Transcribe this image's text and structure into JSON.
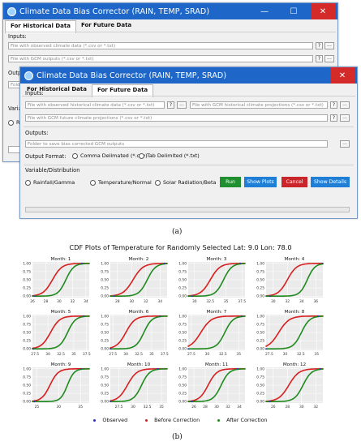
{
  "app": {
    "title": "Climate Data Bias Corrector (RAIN, TEMP, SRAD)",
    "window_controls": {
      "minimize": "—",
      "maximize": "☐",
      "close": "✕"
    },
    "tabs": [
      "For Historical Data",
      "For Future Data"
    ]
  },
  "back_window": {
    "active_tab": "For Historical Data",
    "inputs_label": "Inputs:",
    "observed_placeholder": "File with observed climate data (*.csv or *.txt)",
    "gcm_placeholder": "File with GCM outputs (*.csv or *.txt)",
    "outputs_label": "Outpu",
    "output_folder_partial": "Fold",
    "var_label_partial": "Variab",
    "radio_partial": "R"
  },
  "front_window": {
    "active_tab": "For Future Data",
    "inputs_label": "Inputs:",
    "observed_hist_placeholder": "File with observed historical climate data (*.csv or *.txt)",
    "gcm_hist_placeholder": "File with GCM historical climate projections (*.csv or *.txt)",
    "gcm_future_placeholder": "File with GCM future climate projections (*.csv or *.txt)",
    "outputs_label": "Outputs:",
    "output_folder_placeholder": "Folder to save bias corrected GCM outputs",
    "output_format_label": "Output Format:",
    "format_options": [
      "Comma Delimated (*.csv)",
      "Tab Delimited (*.txt)"
    ],
    "variable_label": "Variable/Distribution",
    "variable_options": [
      "Rainfall/Gamma",
      "Temperature/Normal",
      "Solar Radiation/Beta"
    ],
    "help_glyph": "?",
    "browse_glyph": "...",
    "buttons": {
      "run": "Run",
      "show_plots": "Show Plots",
      "cancel": "Cancel",
      "show_details": "Show Details"
    },
    "button_colors": {
      "run": "#1f8f2f",
      "show_plots": "#1f7fd6",
      "cancel": "#c9252b",
      "show_details": "#1f7fd6"
    }
  },
  "caption_a": "(a)",
  "caption_b": "(b)",
  "chart_data": {
    "type": "line",
    "title": "CDF Plots of Temperature for Randomly Selected Lat: 9.0 Lon: 78.0",
    "panel_titles": [
      "Month: 1",
      "Month: 2",
      "Month: 3",
      "Month: 4",
      "Month: 5",
      "Month: 6",
      "Month: 7",
      "Month: 8",
      "Month: 9",
      "Month: 10",
      "Month: 11",
      "Month: 12"
    ],
    "y_ticks": [
      "0.00",
      "0.25",
      "0.50",
      "0.75",
      "1.00"
    ],
    "ylim": [
      0,
      1
    ],
    "colors": {
      "observed": "#2a2ad0",
      "before": "#d81e1e",
      "after": "#1e8a1e"
    },
    "legend": [
      "Observed",
      "Before Correction",
      "After Correction"
    ],
    "panels": [
      {
        "x_ticks": [
          26,
          28,
          30,
          32,
          34
        ],
        "xlim": [
          26,
          34.5
        ],
        "before": {
          "mu": 29.0,
          "sd": 1.2
        },
        "after": {
          "mu": 31.0,
          "sd": 1.0
        }
      },
      {
        "x_ticks": [
          28,
          30,
          32,
          34
        ],
        "xlim": [
          27,
          35
        ],
        "before": {
          "mu": 30.2,
          "sd": 1.2
        },
        "after": {
          "mu": 32.2,
          "sd": 1.0
        }
      },
      {
        "x_ticks": [
          30.0,
          32.5,
          35.0,
          37.5
        ],
        "xlim": [
          29,
          38
        ],
        "before": {
          "mu": 32.5,
          "sd": 1.3
        },
        "after": {
          "mu": 34.6,
          "sd": 1.1
        }
      },
      {
        "x_ticks": [
          30,
          32,
          34,
          36
        ],
        "xlim": [
          29,
          37
        ],
        "before": {
          "mu": 32.0,
          "sd": 1.1
        },
        "after": {
          "mu": 34.8,
          "sd": 0.9
        }
      },
      {
        "x_ticks": [
          27.5,
          30.0,
          32.5,
          35.0,
          37.5
        ],
        "xlim": [
          27,
          38
        ],
        "before": {
          "mu": 30.5,
          "sd": 1.5
        },
        "after": {
          "mu": 33.8,
          "sd": 1.3
        }
      },
      {
        "x_ticks": [
          27.5,
          30.0,
          32.5,
          35.0,
          37.5
        ],
        "xlim": [
          27,
          38
        ],
        "before": {
          "mu": 30.0,
          "sd": 1.5
        },
        "after": {
          "mu": 33.5,
          "sd": 1.3
        }
      },
      {
        "x_ticks": [
          27.5,
          30.0,
          32.5,
          35.0
        ],
        "xlim": [
          27,
          36
        ],
        "before": {
          "mu": 29.0,
          "sd": 1.4
        },
        "after": {
          "mu": 32.8,
          "sd": 1.1
        }
      },
      {
        "x_ticks": [
          27.5,
          30.0,
          32.5,
          35.0
        ],
        "xlim": [
          27,
          36
        ],
        "before": {
          "mu": 29.0,
          "sd": 1.4
        },
        "after": {
          "mu": 32.6,
          "sd": 1.1
        }
      },
      {
        "x_ticks": [
          25,
          30,
          35
        ],
        "xlim": [
          24,
          37
        ],
        "before": {
          "mu": 28.0,
          "sd": 1.6
        },
        "after": {
          "mu": 32.0,
          "sd": 1.3
        }
      },
      {
        "x_ticks": [
          27.5,
          30.0,
          32.5,
          35.0
        ],
        "xlim": [
          26,
          36
        ],
        "before": {
          "mu": 29.0,
          "sd": 1.4
        },
        "after": {
          "mu": 31.5,
          "sd": 1.2
        }
      },
      {
        "x_ticks": [
          26,
          28,
          30,
          32,
          34
        ],
        "xlim": [
          25,
          35
        ],
        "before": {
          "mu": 28.5,
          "sd": 1.3
        },
        "after": {
          "mu": 30.8,
          "sd": 1.2
        }
      },
      {
        "x_ticks": [
          26,
          28,
          30,
          32
        ],
        "xlim": [
          25,
          33
        ],
        "before": {
          "mu": 28.2,
          "sd": 1.2
        },
        "after": {
          "mu": 30.2,
          "sd": 1.0
        }
      }
    ]
  }
}
